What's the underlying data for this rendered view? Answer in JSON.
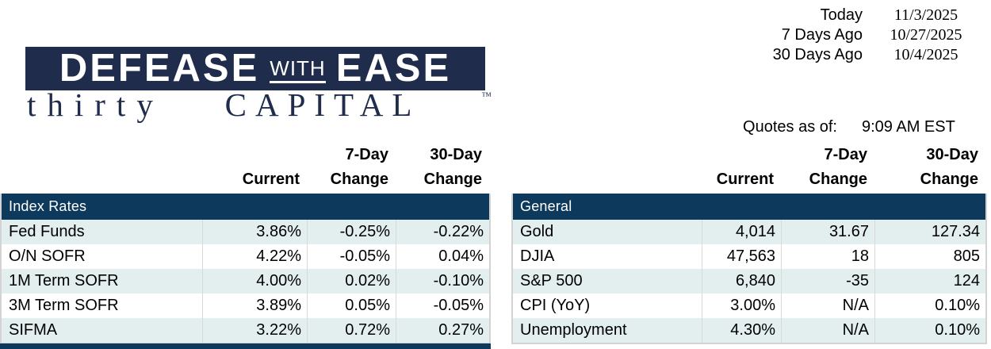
{
  "logo": {
    "defease": "DEFEASE",
    "with": "WITH",
    "ease": "EASE",
    "thirty": "thirty",
    "capital": "CAPITAL",
    "tm": "™"
  },
  "dates": {
    "rows": [
      {
        "label": "Today",
        "date": "11/3/2025"
      },
      {
        "label": "7 Days Ago",
        "date": "10/27/2025"
      },
      {
        "label": "30 Days Ago",
        "date": "10/4/2025"
      }
    ]
  },
  "quotes": {
    "label": "Quotes as of:",
    "time": "9:09 AM EST"
  },
  "col_headers": {
    "seven_day": "7-Day",
    "thirty_day": "30-Day",
    "current": "Current",
    "change": "Change"
  },
  "index_rates": {
    "title": "Index Rates",
    "rows": [
      {
        "label": "Fed Funds",
        "current": "3.86%",
        "change7": "-0.25%",
        "change30": "-0.22%"
      },
      {
        "label": "O/N SOFR",
        "current": "4.22%",
        "change7": "-0.05%",
        "change30": "0.04%"
      },
      {
        "label": "1M Term SOFR",
        "current": "4.00%",
        "change7": "0.02%",
        "change30": "-0.10%"
      },
      {
        "label": "3M Term SOFR",
        "current": "3.89%",
        "change7": "0.05%",
        "change30": "-0.05%"
      },
      {
        "label": "SIFMA",
        "current": "3.22%",
        "change7": "0.72%",
        "change30": "0.27%"
      }
    ]
  },
  "general": {
    "title": "General",
    "rows": [
      {
        "label": "Gold",
        "current": "4,014",
        "change7": "31.67",
        "change30": "127.34"
      },
      {
        "label": "DJIA",
        "current": "47,563",
        "change7": "18",
        "change30": "805"
      },
      {
        "label": "S&P 500",
        "current": "6,840",
        "change7": "-35",
        "change30": "124"
      },
      {
        "label": "CPI (YoY)",
        "current": "3.00%",
        "change7": "N/A",
        "change30": "0.10%"
      },
      {
        "label": "Unemployment",
        "current": "4.30%",
        "change7": "N/A",
        "change30": "0.10%"
      }
    ]
  },
  "colors": {
    "section_band_navy": "#0d3a5c",
    "logo_navy": "#1f2c4c",
    "row_stripe": "#e2efee",
    "table_border": "#d3d3d3"
  }
}
